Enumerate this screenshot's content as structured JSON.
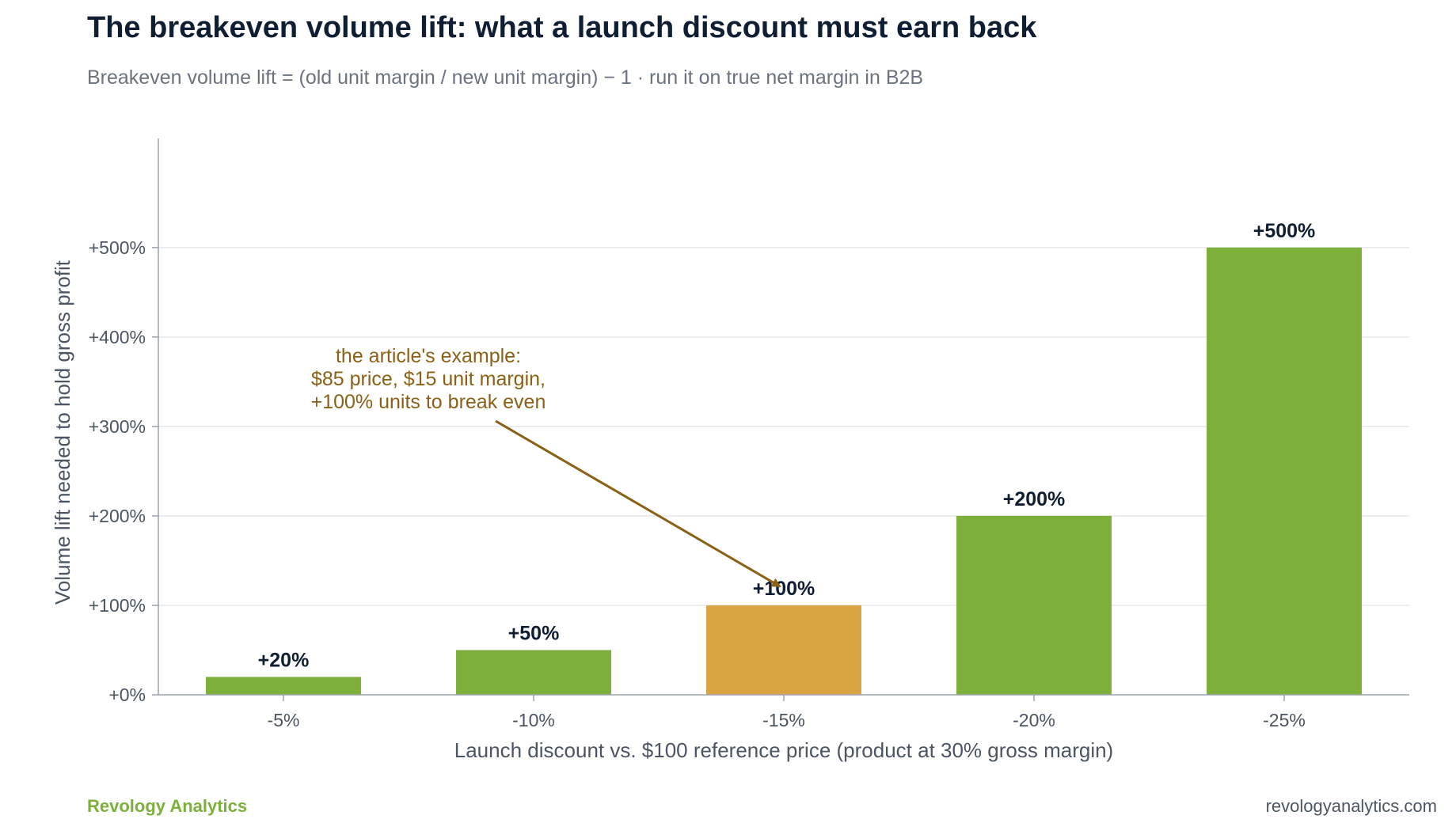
{
  "header": {
    "title": "The breakeven volume lift: what a launch discount must earn back",
    "subtitle": "Breakeven volume lift = (old unit margin / new unit margin) − 1 · run it on true net margin in B2B"
  },
  "footer": {
    "brand": "Revology Analytics",
    "url": "revologyanalytics.com"
  },
  "chart_data": {
    "type": "bar",
    "categories": [
      "-5%",
      "-10%",
      "-15%",
      "-20%",
      "-25%"
    ],
    "values": [
      20,
      50,
      100,
      200,
      500
    ],
    "data_labels": [
      "+20%",
      "+50%",
      "+100%",
      "+200%",
      "+500%"
    ],
    "highlight_index": 2,
    "xlabel": "Launch discount vs. $100 reference price (product at 30% gross margin)",
    "ylabel": "Volume lift needed to hold gross profit",
    "ylim": [
      0,
      560
    ],
    "yticks": [
      0,
      100,
      200,
      300,
      400,
      500
    ],
    "ytick_labels": [
      "+0%",
      "+100%",
      "+200%",
      "+300%",
      "+400%",
      "+500%"
    ],
    "grid": true,
    "annotation": {
      "lines": [
        "the article's example:",
        "$85 price, $15 unit margin,",
        "+100% units to break even"
      ],
      "target_index": 2
    },
    "colors": {
      "bar": "#7cb03b",
      "highlight": "#d9a441",
      "annotation": "#8a6116",
      "grid": "#e5e7eb",
      "axis": "#9ca3af",
      "tick_text": "#4b5563",
      "data_label": "#0f1e33"
    }
  }
}
